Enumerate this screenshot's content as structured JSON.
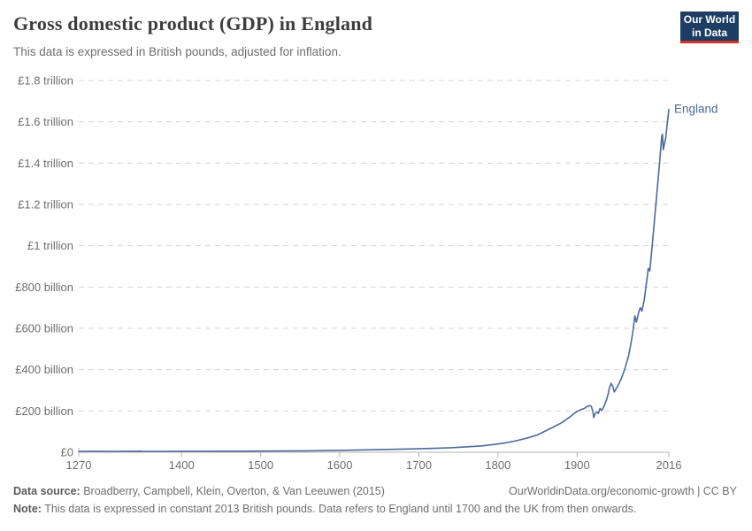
{
  "header": {
    "title": "Gross domestic product (GDP) in England",
    "subtitle": "This data is expressed in British pounds, adjusted for inflation."
  },
  "logo": {
    "line1": "Our World",
    "line2": "in Data",
    "bg_color": "#1d3d63",
    "accent_color": "#d13328"
  },
  "footer": {
    "data_source_label": "Data source:",
    "data_source_text": " Broadberry, Campbell, Klein, Overton, & Van Leeuwen (2015)",
    "link": "OurWorldinData.org/economic-growth | CC BY",
    "note_label": "Note:",
    "note_text": " This data is expressed in constant 2013 British pounds. Data refers to England until 1700 and the UK from then onwards."
  },
  "chart_data": {
    "type": "line",
    "title": "Gross domestic product (GDP) in England",
    "xlabel": "",
    "ylabel": "",
    "grid": "dashed-horizontal",
    "legend_position": "end-of-line",
    "line_color": "#4c6a9c",
    "grid_color": "#d4d4d4",
    "axis_color": "#b3b3b3",
    "tick_label_color": "#6e6e6e",
    "x_axis": {
      "min": 1270,
      "max": 2016,
      "ticks": [
        {
          "value": 1270,
          "label": "1270"
        },
        {
          "value": 1400,
          "label": "1400"
        },
        {
          "value": 1500,
          "label": "1500"
        },
        {
          "value": 1600,
          "label": "1600"
        },
        {
          "value": 1700,
          "label": "1700"
        },
        {
          "value": 1800,
          "label": "1800"
        },
        {
          "value": 1900,
          "label": "1900"
        },
        {
          "value": 2016,
          "label": "2016"
        }
      ]
    },
    "y_axis": {
      "min": 0,
      "max": 1800,
      "unit": "billion GBP",
      "ticks": [
        {
          "value": 0,
          "label": "£0"
        },
        {
          "value": 200,
          "label": "£200 billion"
        },
        {
          "value": 400,
          "label": "£400 billion"
        },
        {
          "value": 600,
          "label": "£600 billion"
        },
        {
          "value": 800,
          "label": "£800 billion"
        },
        {
          "value": 1000,
          "label": "£1 trillion"
        },
        {
          "value": 1200,
          "label": "£1.2 trillion"
        },
        {
          "value": 1400,
          "label": "£1.4 trillion"
        },
        {
          "value": 1600,
          "label": "£1.6 trillion"
        },
        {
          "value": 1800,
          "label": "£1.8 trillion"
        }
      ]
    },
    "series": [
      {
        "name": "England",
        "unit": "billion GBP (constant 2013 prices)",
        "points": [
          [
            1270,
            4.3
          ],
          [
            1290,
            4.8
          ],
          [
            1315,
            4.2
          ],
          [
            1348,
            5.2
          ],
          [
            1352,
            4.1
          ],
          [
            1380,
            4.4
          ],
          [
            1400,
            4.6
          ],
          [
            1430,
            4.8
          ],
          [
            1450,
            5.0
          ],
          [
            1480,
            5.2
          ],
          [
            1500,
            5.5
          ],
          [
            1530,
            6.0
          ],
          [
            1560,
            7.0
          ],
          [
            1600,
            9.0
          ],
          [
            1620,
            10.5
          ],
          [
            1650,
            12.5
          ],
          [
            1675,
            14.5
          ],
          [
            1700,
            16.5
          ],
          [
            1720,
            19
          ],
          [
            1740,
            22
          ],
          [
            1760,
            26
          ],
          [
            1780,
            31
          ],
          [
            1800,
            40
          ],
          [
            1810,
            46
          ],
          [
            1820,
            53
          ],
          [
            1830,
            62
          ],
          [
            1840,
            72
          ],
          [
            1850,
            84
          ],
          [
            1860,
            103
          ],
          [
            1870,
            122
          ],
          [
            1880,
            142
          ],
          [
            1890,
            168
          ],
          [
            1900,
            198
          ],
          [
            1905,
            206
          ],
          [
            1910,
            214
          ],
          [
            1913,
            222
          ],
          [
            1916,
            226
          ],
          [
            1918,
            222
          ],
          [
            1920,
            196
          ],
          [
            1921,
            168
          ],
          [
            1923,
            188
          ],
          [
            1925,
            194
          ],
          [
            1927,
            188
          ],
          [
            1929,
            212
          ],
          [
            1931,
            202
          ],
          [
            1933,
            214
          ],
          [
            1935,
            232
          ],
          [
            1937,
            252
          ],
          [
            1939,
            278
          ],
          [
            1941,
            312
          ],
          [
            1943,
            334
          ],
          [
            1945,
            321
          ],
          [
            1947,
            292
          ],
          [
            1950,
            312
          ],
          [
            1953,
            333
          ],
          [
            1956,
            358
          ],
          [
            1959,
            388
          ],
          [
            1962,
            425
          ],
          [
            1965,
            465
          ],
          [
            1968,
            525
          ],
          [
            1970,
            570
          ],
          [
            1973,
            660
          ],
          [
            1975,
            630
          ],
          [
            1978,
            680
          ],
          [
            1980,
            700
          ],
          [
            1982,
            683
          ],
          [
            1985,
            740
          ],
          [
            1988,
            830
          ],
          [
            1990,
            890
          ],
          [
            1992,
            878
          ],
          [
            1995,
            1000
          ],
          [
            1998,
            1130
          ],
          [
            2001,
            1260
          ],
          [
            2004,
            1390
          ],
          [
            2007,
            1530
          ],
          [
            2008,
            1540
          ],
          [
            2009,
            1465
          ],
          [
            2010,
            1485
          ],
          [
            2012,
            1520
          ],
          [
            2014,
            1590
          ],
          [
            2016,
            1660
          ]
        ]
      }
    ]
  }
}
